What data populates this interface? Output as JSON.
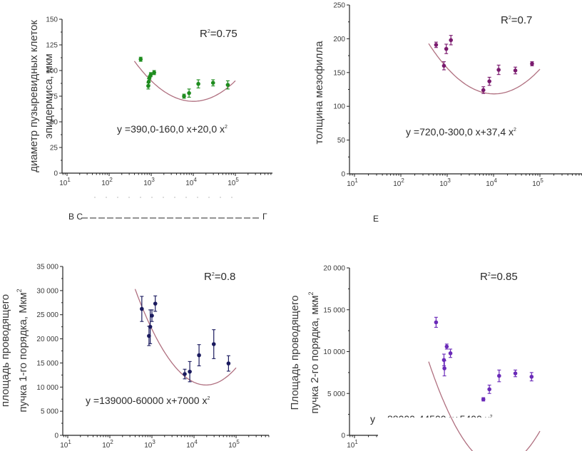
{
  "chart_data": [
    {
      "id": "epidermis",
      "type": "scatter",
      "title": "",
      "xlabel": "",
      "ylabel_lines": [
        "диаметр пузыревидных клеток",
        "эпидермиса, мкм"
      ],
      "xscale": "log",
      "xlim_log10": [
        0.85,
        5.9
      ],
      "ylim": [
        0,
        150
      ],
      "yticks": [
        0,
        25,
        50,
        75,
        100,
        125,
        150
      ],
      "ytick_labels": [
        "0",
        "25",
        "50",
        "75",
        "100",
        "125",
        "150"
      ],
      "xtick_labels": [
        {
          "base": "10",
          "exp": "1"
        },
        {
          "base": "10",
          "exp": "2"
        },
        {
          "base": "10",
          "exp": "3"
        },
        {
          "base": "10",
          "exp": "4"
        },
        {
          "base": "10",
          "exp": "5"
        }
      ],
      "marker_color": "#1e8c1e",
      "fit_color": "#b07080",
      "fit": {
        "a": 390.0,
        "b": -160.0,
        "c": 20.0,
        "x_range_log10": [
          2.6,
          5.0
        ]
      },
      "equation_text": "y =390,0-160,0 x+20,0 x",
      "equation_sup": "2",
      "r2_text": "R",
      "r2_sup": "2",
      "r2_value": "=0.75",
      "points": [
        {
          "logx": 2.75,
          "y": 111,
          "err": 2
        },
        {
          "logx": 2.93,
          "y": 85,
          "err": 3
        },
        {
          "logx": 2.94,
          "y": 89,
          "err": 3
        },
        {
          "logx": 2.96,
          "y": 93,
          "err": 2
        },
        {
          "logx": 2.99,
          "y": 96,
          "err": 2
        },
        {
          "logx": 3.07,
          "y": 98,
          "err": 2
        },
        {
          "logx": 3.78,
          "y": 75,
          "err": 2
        },
        {
          "logx": 3.9,
          "y": 78,
          "err": 4
        },
        {
          "logx": 4.12,
          "y": 87,
          "err": 4
        },
        {
          "logx": 4.47,
          "y": 88,
          "err": 3
        },
        {
          "logx": 4.82,
          "y": 86,
          "err": 4
        }
      ],
      "caption_fragments": [
        "В С",
        "Г"
      ]
    },
    {
      "id": "mesophyll",
      "type": "scatter",
      "title": "",
      "xlabel": "",
      "ylabel_lines": [
        "толщина мезофилла"
      ],
      "xscale": "log",
      "xlim_log10": [
        0.9,
        6.0
      ],
      "ylim": [
        0,
        250
      ],
      "yticks": [
        0,
        50,
        100,
        150,
        200,
        250
      ],
      "ytick_labels": [
        "0",
        "50",
        "100",
        "150",
        "200",
        "250"
      ],
      "xtick_labels": [
        {
          "base": "10",
          "exp": "1"
        },
        {
          "base": "10",
          "exp": "2"
        },
        {
          "base": "10",
          "exp": "3"
        },
        {
          "base": "10",
          "exp": "4"
        },
        {
          "base": "10",
          "exp": "5"
        }
      ],
      "marker_color": "#7a1a6e",
      "fit_color": "#b07080",
      "fit": {
        "a": 720.0,
        "b": -300.0,
        "c": 37.4,
        "x_range_log10": [
          2.6,
          5.0
        ]
      },
      "equation_text": "y =720,0-300,0 x+37,4 x",
      "equation_sup": "2",
      "r2_text": "R",
      "r2_sup": "2",
      "r2_value": "=0.7",
      "points": [
        {
          "logx": 2.76,
          "y": 191,
          "err": 4
        },
        {
          "logx": 2.93,
          "y": 160,
          "err": 6
        },
        {
          "logx": 2.98,
          "y": 185,
          "err": 7
        },
        {
          "logx": 3.08,
          "y": 198,
          "err": 7
        },
        {
          "logx": 3.78,
          "y": 124,
          "err": 5
        },
        {
          "logx": 3.91,
          "y": 137,
          "err": 6
        },
        {
          "logx": 4.11,
          "y": 154,
          "err": 7
        },
        {
          "logx": 4.47,
          "y": 153,
          "err": 5
        },
        {
          "logx": 4.83,
          "y": 163,
          "err": 3
        }
      ],
      "caption_fragments": [
        "Е"
      ]
    },
    {
      "id": "bundle1",
      "type": "scatter",
      "title": "",
      "xlabel": "",
      "ylabel_lines": [
        "площадь проводящего",
        "пучка 1-го порядка, Мкм"
      ],
      "ylabel_sup": "2",
      "xscale": "log",
      "xlim_log10": [
        0.88,
        5.8
      ],
      "ylim": [
        0,
        35000
      ],
      "yticks": [
        0,
        5000,
        10000,
        15000,
        20000,
        25000,
        30000,
        35000
      ],
      "ytick_labels": [
        "0",
        "5 000",
        "10 000",
        "15 000",
        "20 000",
        "25 000",
        "30 000",
        "35 000"
      ],
      "xtick_labels": [
        {
          "base": "10",
          "exp": "1"
        },
        {
          "base": "10",
          "exp": "2"
        },
        {
          "base": "10",
          "exp": "3"
        },
        {
          "base": "10",
          "exp": "4"
        },
        {
          "base": "10",
          "exp": "5"
        }
      ],
      "marker_color": "#1a1a5e",
      "fit_color": "#b07080",
      "fit": {
        "a": 139000,
        "b": -60000,
        "c": 7000,
        "x_range_log10": [
          2.6,
          5.0
        ]
      },
      "equation_text": "y =139000-60000 x+7000 x",
      "equation_sup": "2",
      "r2_text": "R",
      "r2_sup": "2",
      "r2_value": "=0.8",
      "points": [
        {
          "logx": 2.76,
          "y": 26200,
          "err": 2600
        },
        {
          "logx": 2.93,
          "y": 20600,
          "err": 2000
        },
        {
          "logx": 2.96,
          "y": 22500,
          "err": 3500
        },
        {
          "logx": 3.0,
          "y": 24800,
          "err": 1200
        },
        {
          "logx": 3.08,
          "y": 27300,
          "err": 1600
        },
        {
          "logx": 3.78,
          "y": 12700,
          "err": 1000
        },
        {
          "logx": 3.9,
          "y": 13200,
          "err": 2100
        },
        {
          "logx": 4.12,
          "y": 16600,
          "err": 2200
        },
        {
          "logx": 4.47,
          "y": 18900,
          "err": 3000
        },
        {
          "logx": 4.82,
          "y": 14900,
          "err": 1600
        }
      ]
    },
    {
      "id": "bundle2",
      "type": "scatter",
      "title": "",
      "xlabel": "",
      "ylabel_lines": [
        "Площадь проводящего",
        "пучка 2-го порядка, мкм"
      ],
      "ylabel_sup": "2",
      "xscale": "log",
      "xlim_log10": [
        0.9,
        1.5
      ],
      "ylim": [
        0,
        20000
      ],
      "yticks": [
        0,
        5000,
        10000,
        15000,
        20000
      ],
      "ytick_labels": [
        "0",
        "5 000",
        "10 000",
        "15 000",
        "20 000"
      ],
      "xtick_labels": [
        {
          "base": "10",
          "exp": "1"
        }
      ],
      "marker_color": "#6a2ab8",
      "fit_color": "#b07080",
      "fit": {
        "a": 88000,
        "b": -44500,
        "c": 5400,
        "x_range_log10": [
          2.6,
          5.0
        ]
      },
      "equation_visible_start": "y",
      "equation_obscured": "88000-44500 x+5400 x",
      "equation_sup": "2",
      "r2_text": "R",
      "r2_sup": "2",
      "r2_value": "=0.85",
      "points": [
        {
          "logx": 2.76,
          "y": 13500,
          "err": 600
        },
        {
          "logx": 2.93,
          "y": 9000,
          "err": 700
        },
        {
          "logx": 2.94,
          "y": 8000,
          "err": 900
        },
        {
          "logx": 2.99,
          "y": 10600,
          "err": 300
        },
        {
          "logx": 3.07,
          "y": 9800,
          "err": 500
        },
        {
          "logx": 3.78,
          "y": 4300,
          "err": 200
        },
        {
          "logx": 3.91,
          "y": 5500,
          "err": 500
        },
        {
          "logx": 4.12,
          "y": 7100,
          "err": 700
        },
        {
          "logx": 4.47,
          "y": 7400,
          "err": 400
        },
        {
          "logx": 4.82,
          "y": 7000,
          "err": 500
        }
      ]
    }
  ]
}
